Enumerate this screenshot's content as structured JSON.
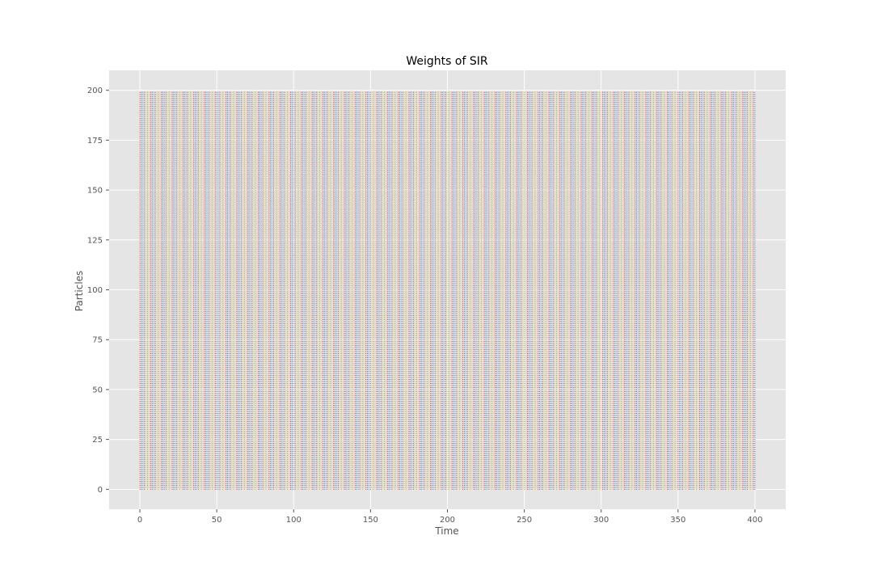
{
  "chart_data": {
    "type": "scatter",
    "title": "Weights of SIR",
    "xlabel": "Time",
    "ylabel": "Particles",
    "xlim": [
      -20,
      420
    ],
    "ylim": [
      -10,
      210
    ],
    "xticks": [
      0,
      50,
      100,
      150,
      200,
      250,
      300,
      350,
      400
    ],
    "yticks": [
      0,
      25,
      50,
      75,
      100,
      125,
      150,
      175,
      200
    ],
    "grid": true,
    "legend": "none",
    "x_range": [
      0,
      400
    ],
    "y_range": [
      0,
      199
    ],
    "point_step": 1,
    "colors": [
      "#e24a33",
      "#348abd",
      "#988ed5",
      "#777777",
      "#fbc15e",
      "#8eba42",
      "#ffb5b8"
    ],
    "background": "#e5e5e5",
    "grid_color": "#ffffff"
  }
}
